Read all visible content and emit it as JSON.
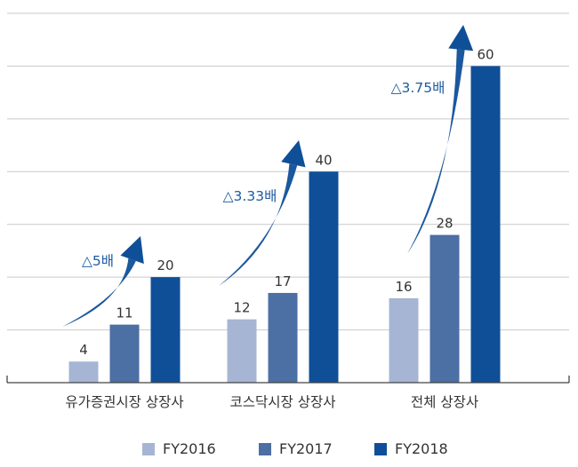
{
  "chart_data": {
    "type": "bar",
    "categories": [
      "유가증권시장 상장사",
      "코스닥시장 상장사",
      "전체 상장사"
    ],
    "series": [
      {
        "name": "FY2016",
        "values": [
          4,
          12,
          16
        ],
        "color": "#a6b5d3"
      },
      {
        "name": "FY2017",
        "values": [
          11,
          17,
          28
        ],
        "color": "#4c6fa4"
      },
      {
        "name": "FY2018",
        "values": [
          20,
          40,
          60
        ],
        "color": "#0f4f98"
      }
    ],
    "annotations": [
      "△5배",
      "△3.33배",
      "△3.75배"
    ],
    "annotation_color": "#1e5aa0",
    "arrow_color": "#0f4f98",
    "ylim": [
      0,
      70
    ],
    "grid": true,
    "legend_position": "bottom"
  }
}
